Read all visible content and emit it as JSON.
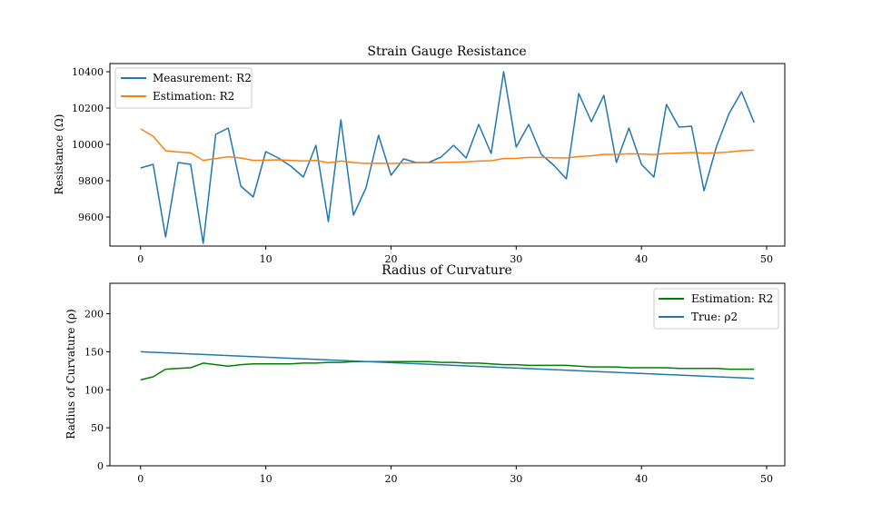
{
  "chart_data": [
    {
      "type": "line",
      "title": "Strain Gauge Resistance",
      "xlabel": "",
      "ylabel": "Resistance (Ω)",
      "xlim": [
        -2.45,
        51.45
      ],
      "ylim": [
        9440,
        10445
      ],
      "xticks": [
        0,
        10,
        20,
        30,
        40,
        50
      ],
      "yticks": [
        9600,
        9800,
        10000,
        10200,
        10400
      ],
      "legend": "top-left",
      "grid": false,
      "series": [
        {
          "name": "Measurement: R2",
          "color": "#1f77b4",
          "x": [
            0,
            1,
            2,
            3,
            4,
            5,
            6,
            7,
            8,
            9,
            10,
            11,
            12,
            13,
            14,
            15,
            16,
            17,
            18,
            19,
            20,
            21,
            22,
            23,
            24,
            25,
            26,
            27,
            28,
            29,
            30,
            31,
            32,
            33,
            34,
            35,
            36,
            37,
            38,
            39,
            40,
            41,
            42,
            43,
            44,
            45,
            46,
            47,
            48,
            49
          ],
          "values": [
            9870,
            9890,
            9490,
            9900,
            9890,
            9455,
            10055,
            10090,
            9770,
            9710,
            9960,
            9925,
            9880,
            9820,
            9995,
            9575,
            10135,
            9610,
            9760,
            10050,
            9830,
            9920,
            9900,
            9900,
            9930,
            9995,
            9925,
            10110,
            9950,
            10400,
            9985,
            10110,
            9945,
            9885,
            9810,
            10280,
            10125,
            10270,
            9900,
            10090,
            9890,
            9820,
            10220,
            10095,
            10100,
            9745,
            9990,
            10170,
            10290,
            10120
          ]
        },
        {
          "name": "Estimation: R2",
          "color": "#ff7f0e",
          "x": [
            0,
            1,
            2,
            3,
            4,
            5,
            6,
            7,
            8,
            9,
            10,
            11,
            12,
            13,
            14,
            15,
            16,
            17,
            18,
            19,
            20,
            21,
            22,
            23,
            24,
            25,
            26,
            27,
            28,
            29,
            30,
            31,
            32,
            33,
            34,
            35,
            36,
            37,
            38,
            39,
            40,
            41,
            42,
            43,
            44,
            45,
            46,
            47,
            48,
            49
          ],
          "values": [
            10085,
            10045,
            9965,
            9958,
            9953,
            9912,
            9922,
            9932,
            9925,
            9912,
            9913,
            9915,
            9912,
            9909,
            9912,
            9899,
            9908,
            9900,
            9895,
            9896,
            9895,
            9897,
            9898,
            9899,
            9900,
            9902,
            9904,
            9908,
            9910,
            9922,
            9923,
            9928,
            9928,
            9926,
            9925,
            9933,
            9937,
            9945,
            9945,
            9948,
            9947,
            9944,
            9950,
            9952,
            9955,
            9952,
            9954,
            9958,
            9965,
            9968
          ]
        }
      ]
    },
    {
      "type": "line",
      "title": "Radius of Curvature",
      "xlabel": "",
      "ylabel": "Radius of Curvature (ρ)",
      "xlim": [
        -2.45,
        51.45
      ],
      "ylim": [
        0,
        240
      ],
      "xticks": [
        0,
        10,
        20,
        30,
        40,
        50
      ],
      "yticks": [
        0,
        50,
        100,
        150,
        200
      ],
      "legend": "top-right",
      "grid": false,
      "series": [
        {
          "name": "Estimation: R2",
          "color": "#008000",
          "x": [
            0,
            1,
            2,
            3,
            4,
            5,
            6,
            7,
            8,
            9,
            10,
            11,
            12,
            13,
            14,
            15,
            16,
            17,
            18,
            19,
            20,
            21,
            22,
            23,
            24,
            25,
            26,
            27,
            28,
            29,
            30,
            31,
            32,
            33,
            34,
            35,
            36,
            37,
            38,
            39,
            40,
            41,
            42,
            43,
            44,
            45,
            46,
            47,
            48,
            49
          ],
          "values": [
            113,
            117,
            127,
            128,
            129,
            135,
            133,
            131,
            133,
            134,
            134,
            134,
            134,
            135,
            135,
            136,
            136,
            137,
            137,
            137,
            137,
            137,
            137,
            137,
            136,
            136,
            135,
            135,
            134,
            133,
            133,
            132,
            132,
            132,
            132,
            131,
            130,
            130,
            130,
            129,
            129,
            129,
            129,
            128,
            128,
            128,
            128,
            127,
            127,
            127
          ]
        },
        {
          "name": "True: ρ2",
          "color": "#1f77b4",
          "x": [
            0,
            49
          ],
          "values": [
            150,
            115
          ]
        }
      ]
    }
  ]
}
